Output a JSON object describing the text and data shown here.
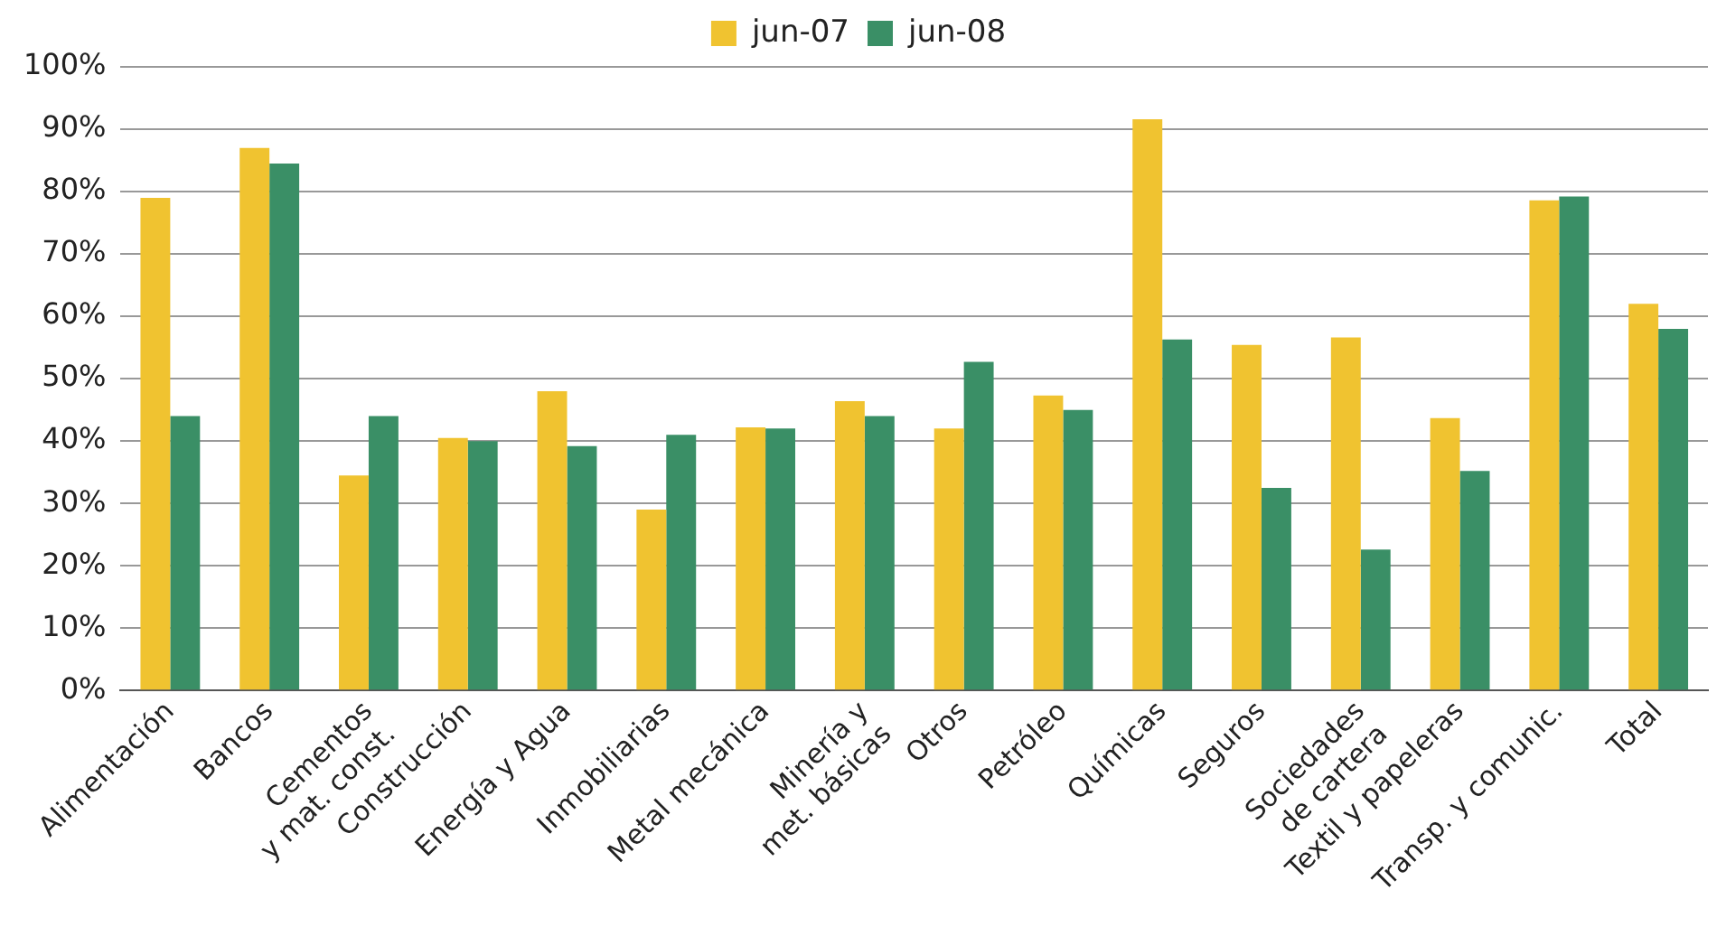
{
  "chart_data": {
    "type": "bar",
    "categories": [
      "Alimentación",
      "Bancos",
      "Cementos\ny mat. const.",
      "Construcción",
      "Energía y Agua",
      "Inmobiliarias",
      "Metal mecánica",
      "Minería y\nmet. básicas",
      "Otros",
      "Petróleo",
      "Químicas",
      "Seguros",
      "Sociedades\nde cartera",
      "Textil y papeleras",
      "Transp. y comunic.",
      "Total"
    ],
    "series": [
      {
        "name": "jun-07",
        "color": "#f0c330",
        "values": [
          79,
          87,
          34.5,
          40.5,
          48,
          29,
          42.2,
          46.4,
          42,
          47.3,
          91.6,
          55.4,
          56.6,
          43.7,
          78.6,
          62
        ]
      },
      {
        "name": "jun-08",
        "color": "#3a8f66",
        "values": [
          44,
          84.5,
          44,
          40,
          39.2,
          41,
          42,
          44,
          52.7,
          45,
          56.3,
          32.5,
          22.6,
          35.2,
          79.2,
          58
        ]
      }
    ],
    "ylim": [
      0,
      100
    ],
    "yticks": [
      {
        "value": 0,
        "label": "0%"
      },
      {
        "value": 10,
        "label": "10%"
      },
      {
        "value": 20,
        "label": "20%"
      },
      {
        "value": 30,
        "label": "30%"
      },
      {
        "value": 40,
        "label": "40%"
      },
      {
        "value": 50,
        "label": "50%"
      },
      {
        "value": 60,
        "label": "60%"
      },
      {
        "value": 70,
        "label": "70%"
      },
      {
        "value": 80,
        "label": "80%"
      },
      {
        "value": 90,
        "label": "90%"
      },
      {
        "value": 100,
        "label": "100%"
      }
    ],
    "grid": "y",
    "legend": "top"
  }
}
